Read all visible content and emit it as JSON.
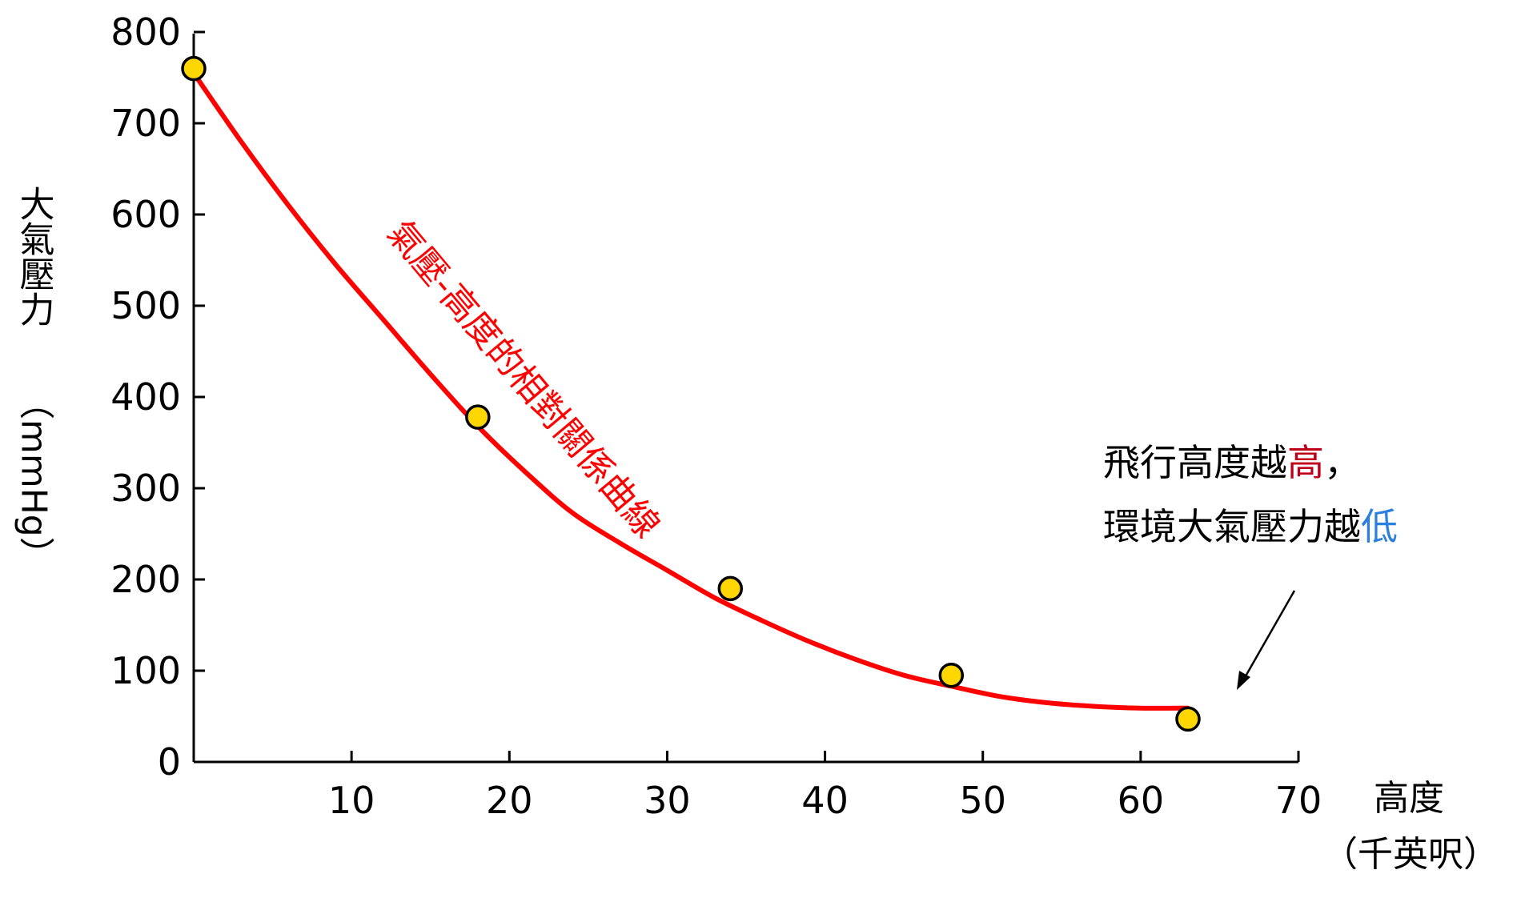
{
  "chart_data": {
    "type": "scatter",
    "title": "",
    "xlabel": "高度",
    "xlabel_unit": "（千英呎）",
    "ylabel": "大氣壓力",
    "ylabel_unit": "（mmHg）",
    "xlim": [
      0,
      70
    ],
    "ylim": [
      0,
      800
    ],
    "x_ticks": [
      10,
      20,
      30,
      40,
      50,
      60,
      70
    ],
    "y_ticks": [
      0,
      100,
      200,
      300,
      400,
      500,
      600,
      700,
      800
    ],
    "grid": false,
    "points": [
      {
        "x": 0,
        "y": 760
      },
      {
        "x": 18,
        "y": 378
      },
      {
        "x": 34,
        "y": 190
      },
      {
        "x": 48,
        "y": 95
      },
      {
        "x": 63,
        "y": 47
      }
    ],
    "curve": {
      "label": "氣壓-高度的相對關係曲線",
      "color": "#ff0000",
      "x": [
        0,
        3,
        6,
        9,
        12,
        15,
        18,
        21,
        24,
        27,
        30,
        33,
        36,
        39,
        42,
        45,
        48,
        51,
        54,
        57,
        60,
        63
      ],
      "y": [
        755,
        680,
        610,
        545,
        485,
        425,
        368,
        318,
        273,
        240,
        210,
        180,
        155,
        132,
        112,
        95,
        83,
        72,
        65,
        61,
        59,
        59
      ]
    },
    "annotation": {
      "line1_prefix": "飛行高度越",
      "line1_highlight": "高",
      "line1_suffix": "，",
      "line2_prefix": "環境大氣壓力越",
      "line2_highlight": "低",
      "highlight1_color": "#c0001a",
      "highlight2_color": "#2a7fe0"
    },
    "point_color": "#ffd700"
  }
}
